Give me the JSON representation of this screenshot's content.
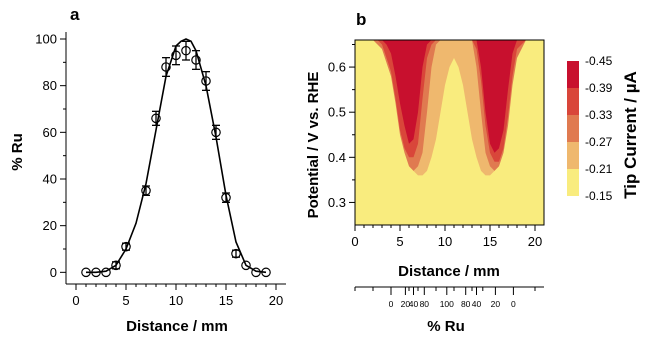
{
  "chart_data": [
    {
      "panel_label": "a",
      "type": "scatter",
      "xlabel": "Distance / mm",
      "ylabel": "% Ru",
      "xlim": [
        -1,
        21
      ],
      "ylim": [
        -5,
        103
      ],
      "x_ticks": [
        0,
        5,
        10,
        15,
        20
      ],
      "y_ticks": [
        0,
        20,
        40,
        60,
        80,
        100
      ],
      "grid": false,
      "series": [
        {
          "marker": "open-circle",
          "x": [
            1,
            2,
            3,
            4,
            5,
            7,
            8,
            9,
            10,
            11,
            12,
            13,
            14,
            15,
            16,
            17,
            18,
            19
          ],
          "y": [
            0,
            0,
            0,
            3,
            11,
            35,
            66,
            88,
            93,
            95,
            91,
            82,
            60,
            32,
            8,
            3,
            0,
            0
          ],
          "error": [
            1,
            1,
            1,
            1.5,
            1.5,
            2,
            3,
            4,
            4,
            4,
            4,
            4,
            3,
            2,
            1.5,
            1,
            1,
            1
          ]
        },
        {
          "style": "line",
          "x": [
            1,
            2,
            3,
            4,
            5,
            6,
            7,
            8,
            9,
            10,
            10.5,
            11,
            11.5,
            12,
            13,
            14,
            15,
            16,
            17,
            18,
            19
          ],
          "y": [
            0,
            0,
            0.5,
            3,
            10,
            21,
            38,
            61,
            84,
            97,
            99,
            100,
            99,
            95,
            80,
            58,
            33,
            13,
            3,
            0.5,
            0
          ]
        }
      ]
    },
    {
      "panel_label": "b",
      "type": "heatmap",
      "xlabel": "Distance / mm",
      "ylabel": "Potential / V vs. RHE",
      "xlim": [
        0,
        21
      ],
      "ylim": [
        0.25,
        0.66
      ],
      "x_ticks": [
        0,
        5,
        10,
        15,
        20
      ],
      "y_ticks": [
        0.3,
        0.4,
        0.5,
        0.6
      ],
      "colorbar": {
        "label": "Tip Current / µA",
        "levels": [
          "-0.45",
          "-0.39",
          "-0.33",
          "-0.27",
          "-0.21",
          "-0.15"
        ],
        "colors": [
          "#c8102e",
          "#d9463a",
          "#e07a50",
          "#efb86e",
          "#f9ec7e"
        ]
      },
      "level_fill": {
        "description": "lowest potential (in V) reached by each current band along distance",
        "distance_mm": [
          0,
          1,
          2,
          2.5,
          3,
          3.5,
          4,
          4.5,
          5,
          5.5,
          6,
          6.5,
          7,
          7.5,
          8,
          8.5,
          9,
          9.5,
          10,
          10.5,
          11,
          11.5,
          12,
          12.5,
          13,
          13.5,
          14,
          14.5,
          15,
          15.5,
          16,
          16.5,
          17,
          17.5,
          18,
          19,
          20,
          21
        ],
        "band_-0.15_-0.21": [
          0.66,
          0.66,
          0.66,
          0.66,
          0.63,
          0.6,
          0.57,
          0.53,
          0.48,
          0.43,
          0.39,
          0.37,
          0.35,
          0.33,
          0.32,
          0.32,
          0.31,
          0.31,
          0.3,
          0.3,
          0.3,
          0.31,
          0.31,
          0.32,
          0.33,
          0.34,
          0.35,
          0.35,
          0.36,
          0.38,
          0.4,
          0.43,
          0.5,
          0.58,
          0.63,
          0.66,
          0.66,
          0.66
        ],
        "band_-0.21_-0.27": [
          0.66,
          0.66,
          0.66,
          0.66,
          0.64,
          0.61,
          0.58,
          0.53,
          0.47,
          0.42,
          0.39,
          0.37,
          0.36,
          0.36,
          0.37,
          0.4,
          0.44,
          0.5,
          0.56,
          0.6,
          0.62,
          0.6,
          0.56,
          0.5,
          0.44,
          0.4,
          0.37,
          0.36,
          0.36,
          0.37,
          0.39,
          0.42,
          0.49,
          0.57,
          0.63,
          0.66,
          0.66,
          0.66
        ],
        "band_-0.27_-0.33": [
          0.66,
          0.66,
          0.66,
          0.65,
          0.64,
          0.61,
          0.58,
          0.52,
          0.45,
          0.41,
          0.38,
          0.37,
          0.38,
          0.41,
          0.5,
          0.6,
          0.65,
          0.66,
          0.66,
          0.66,
          0.66,
          0.66,
          0.66,
          0.66,
          0.66,
          0.6,
          0.5,
          0.41,
          0.38,
          0.37,
          0.38,
          0.41,
          0.47,
          0.56,
          0.62,
          0.66,
          0.66,
          0.66
        ],
        "band_-0.33_-0.39": [
          0.66,
          0.66,
          0.66,
          0.66,
          0.65,
          0.62,
          0.59,
          0.53,
          0.46,
          0.42,
          0.4,
          0.4,
          0.43,
          0.53,
          0.62,
          0.65,
          0.66,
          0.66,
          0.66,
          0.66,
          0.66,
          0.66,
          0.66,
          0.66,
          0.66,
          0.64,
          0.57,
          0.47,
          0.41,
          0.39,
          0.39,
          0.42,
          0.49,
          0.58,
          0.64,
          0.66,
          0.66,
          0.66
        ],
        "band_-0.39_-0.45": [
          0.66,
          0.66,
          0.66,
          0.66,
          0.66,
          0.65,
          0.63,
          0.58,
          0.52,
          0.47,
          0.43,
          0.44,
          0.5,
          0.6,
          0.65,
          0.66,
          0.66,
          0.66,
          0.66,
          0.66,
          0.66,
          0.66,
          0.66,
          0.66,
          0.66,
          0.66,
          0.6,
          0.5,
          0.43,
          0.41,
          0.42,
          0.46,
          0.55,
          0.63,
          0.66,
          0.66,
          0.66,
          0.66
        ]
      },
      "secondary_axis": {
        "label": "% Ru",
        "tick_labels": [
          "0",
          "20",
          "40",
          "80",
          "100",
          "80",
          "40",
          "20",
          "0"
        ],
        "tick_distances_mm": [
          4,
          5.6,
          6.5,
          7.7,
          10.2,
          12.3,
          13.5,
          15.6,
          17.6
        ],
        "minor_tick_distances_mm": [
          0,
          2,
          6,
          7,
          9,
          11,
          13,
          14.2,
          20
        ]
      }
    }
  ]
}
